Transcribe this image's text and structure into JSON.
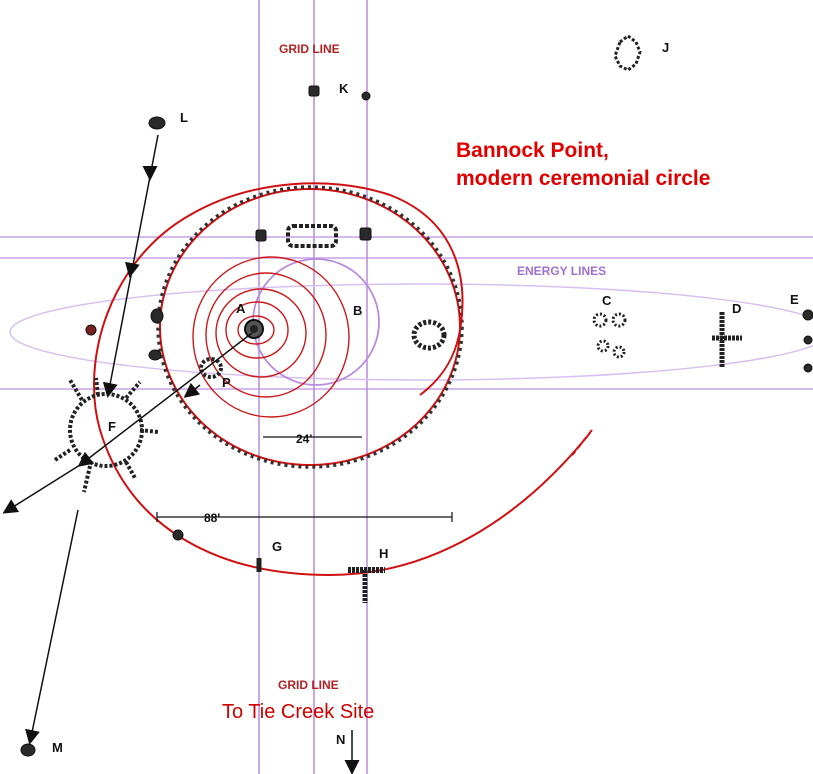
{
  "title_line1": "Bannock Point,",
  "title_line2": "modern ceremonial circle",
  "grid_label_top": "GRID LINE",
  "grid_label_bottom": "GRID LINE",
  "energy_label": "ENERGY LINES",
  "destination": "To Tie Creek Site",
  "north": "N",
  "dim_small": "24'",
  "dim_large": "88'",
  "points": {
    "A": "A",
    "B": "B",
    "C": "C",
    "D": "D",
    "E": "E",
    "F": "F",
    "G": "G",
    "H": "H",
    "J": "J",
    "K": "K",
    "L": "L",
    "M": "M",
    "P": "P"
  },
  "colors": {
    "spiral": "#d01010",
    "grid": "#b88be0",
    "stones": "#222222",
    "title": "#e00000"
  }
}
